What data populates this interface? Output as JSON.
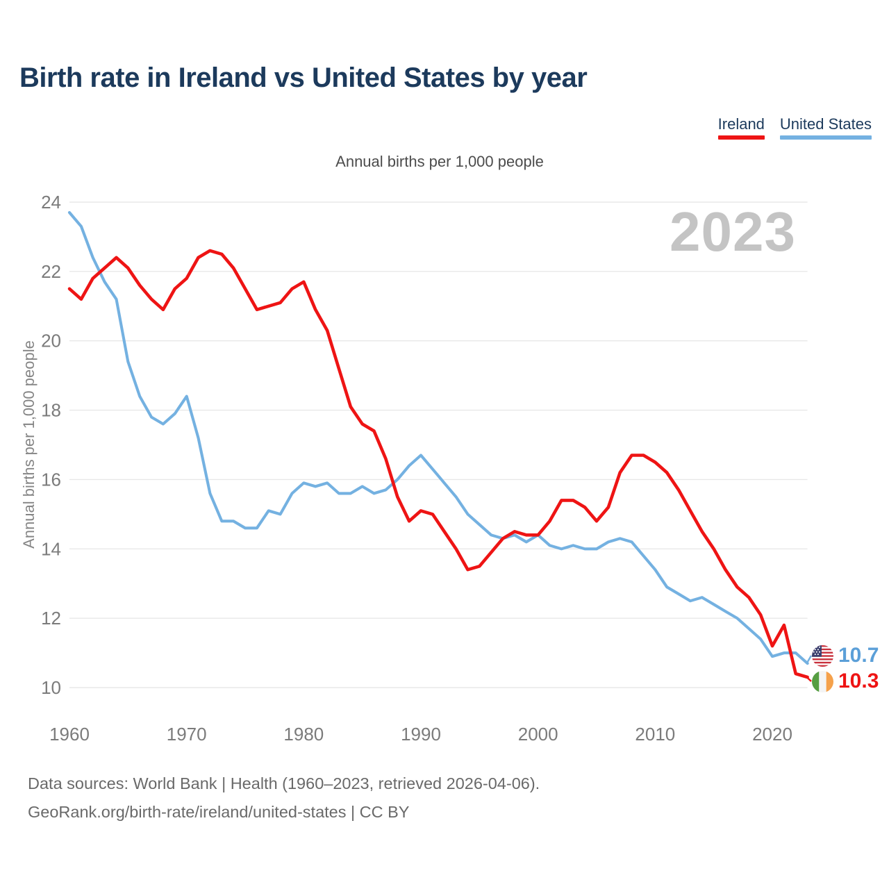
{
  "header": {
    "title": "Birth rate in Ireland vs United States by year"
  },
  "legend": {
    "items": [
      {
        "label": "Ireland",
        "color": "#ee1414"
      },
      {
        "label": "United States",
        "color": "#74b1e1"
      }
    ]
  },
  "chart": {
    "subtitle": "Annual births per 1,000 people",
    "y_axis_title": "Annual births per 1,000 people",
    "watermark": "2023"
  },
  "chart_data": {
    "type": "line",
    "title": "Birth rate in Ireland vs United States by year",
    "xlabel": "",
    "ylabel": "Annual births per 1,000 people",
    "x": [
      1960,
      1961,
      1962,
      1963,
      1964,
      1965,
      1966,
      1967,
      1968,
      1969,
      1970,
      1971,
      1972,
      1973,
      1974,
      1975,
      1976,
      1977,
      1978,
      1979,
      1980,
      1981,
      1982,
      1983,
      1984,
      1985,
      1986,
      1987,
      1988,
      1989,
      1990,
      1991,
      1992,
      1993,
      1994,
      1995,
      1996,
      1997,
      1998,
      1999,
      2000,
      2001,
      2002,
      2003,
      2004,
      2005,
      2006,
      2007,
      2008,
      2009,
      2010,
      2011,
      2012,
      2013,
      2014,
      2015,
      2016,
      2017,
      2018,
      2019,
      2020,
      2021,
      2022,
      2023
    ],
    "series": [
      {
        "name": "Ireland",
        "color": "#ee1414",
        "end_label": "10.3",
        "end_label_color": "#ee1414",
        "flag": "ireland-flag",
        "values": [
          21.5,
          21.2,
          21.8,
          22.1,
          22.4,
          22.1,
          21.6,
          21.2,
          20.9,
          21.5,
          21.8,
          22.4,
          22.6,
          22.5,
          22.1,
          21.5,
          20.9,
          21.0,
          21.1,
          21.5,
          21.7,
          20.9,
          20.3,
          19.2,
          18.1,
          17.6,
          17.4,
          16.6,
          15.5,
          14.8,
          15.1,
          15.0,
          14.5,
          14.0,
          13.4,
          13.5,
          13.9,
          14.3,
          14.5,
          14.4,
          14.4,
          14.8,
          15.4,
          15.4,
          15.2,
          14.8,
          15.2,
          16.2,
          16.7,
          16.7,
          16.5,
          16.2,
          15.7,
          15.1,
          14.5,
          14.0,
          13.4,
          12.9,
          12.6,
          12.1,
          11.2,
          11.8,
          10.4,
          10.3
        ]
      },
      {
        "name": "United States",
        "color": "#74b1e1",
        "end_label": "10.7",
        "end_label_color": "#5b9fd8",
        "flag": "us-flag",
        "values": [
          23.7,
          23.3,
          22.4,
          21.7,
          21.2,
          19.4,
          18.4,
          17.8,
          17.6,
          17.9,
          18.4,
          17.2,
          15.6,
          14.8,
          14.8,
          14.6,
          14.6,
          15.1,
          15.0,
          15.6,
          15.9,
          15.8,
          15.9,
          15.6,
          15.6,
          15.8,
          15.6,
          15.7,
          16.0,
          16.4,
          16.7,
          16.3,
          15.9,
          15.5,
          15.0,
          14.7,
          14.4,
          14.3,
          14.4,
          14.2,
          14.4,
          14.1,
          14.0,
          14.1,
          14.0,
          14.0,
          14.2,
          14.3,
          14.2,
          13.8,
          13.4,
          12.9,
          12.7,
          12.5,
          12.6,
          12.4,
          12.2,
          12.0,
          11.7,
          11.4,
          10.9,
          11.0,
          11.0,
          10.7
        ]
      }
    ],
    "xticks": [
      1960,
      1970,
      1980,
      1990,
      2000,
      2010,
      2020
    ],
    "yticks": [
      10,
      12,
      14,
      16,
      18,
      20,
      22,
      24
    ],
    "ylim": [
      10,
      24
    ],
    "xlim": [
      1960,
      2023
    ],
    "grid": "horizontal",
    "legend_position": "top-right"
  },
  "footer": {
    "line1": "Data sources: World Bank | Health (1960–2023, retrieved 2026-04-06).",
    "line2": "GeoRank.org/birth-rate/ireland/united-states | CC BY"
  }
}
